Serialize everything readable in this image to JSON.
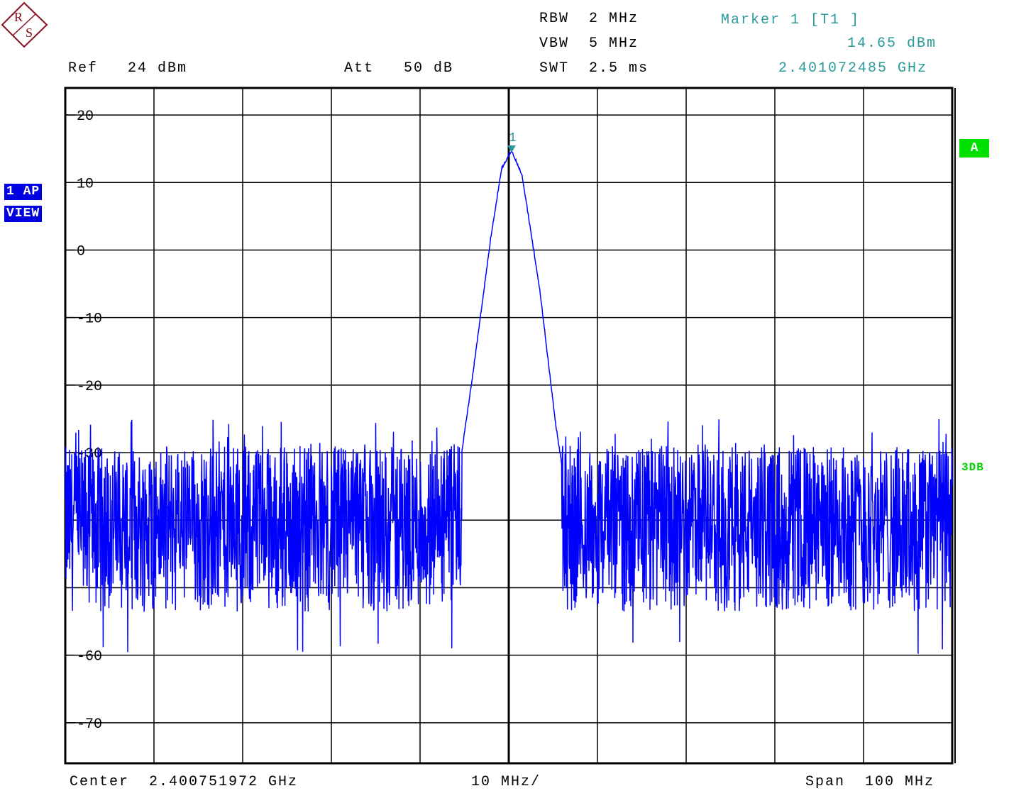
{
  "header": {
    "rbw": "RBW  2 MHz",
    "vbw": "VBW  5 MHz",
    "swt": "SWT  2.5 ms",
    "ref": "Ref   24 dBm",
    "att": "Att   50 dB",
    "marker_title": "Marker 1 [T1 ]",
    "marker_level": "14.65 dBm",
    "marker_freq": "2.401072485 GHz"
  },
  "side": {
    "trace_badge": "1 AP",
    "view_badge": "VIEW",
    "a_badge": "A",
    "db3_label": "3DB"
  },
  "footer": {
    "center": "Center  2.400751972 GHz",
    "per_div": "10 MHz/",
    "span": "Span  100 MHz"
  },
  "colors": {
    "trace": "#0000ff",
    "marker": "#2a9a9a",
    "grid": "#000000",
    "badge_blue": "#0000e0",
    "badge_green": "#00e000"
  },
  "chart_data": {
    "type": "line",
    "xlabel": "",
    "ylabel": "",
    "x_center_ghz": 2.400751972,
    "x_span_mhz": 100,
    "x_div_mhz": 10,
    "ylim": [
      -76,
      24
    ],
    "y_ticks": [
      20,
      10,
      0,
      -10,
      -20,
      -30,
      -60,
      -70
    ],
    "grid": true,
    "series": [
      {
        "noise_floor_db": [
          -58,
          -29
        ],
        "peak": {
          "x_mhz": 0.32,
          "y_db": 14.65
        },
        "envelope": [
          {
            "x_mhz": -5.3,
            "y_db": -30
          },
          {
            "x_mhz": -4.0,
            "y_db": -18
          },
          {
            "x_mhz": -2.0,
            "y_db": 2
          },
          {
            "x_mhz": -0.8,
            "y_db": 12
          },
          {
            "x_mhz": 0.32,
            "y_db": 14.65
          },
          {
            "x_mhz": 1.5,
            "y_db": 11
          },
          {
            "x_mhz": 3.5,
            "y_db": -6
          },
          {
            "x_mhz": 5.3,
            "y_db": -26
          },
          {
            "x_mhz": 6.0,
            "y_db": -32
          }
        ]
      }
    ],
    "marker": {
      "label": "1",
      "x_mhz": 0.32,
      "y_db": 14.65
    }
  }
}
